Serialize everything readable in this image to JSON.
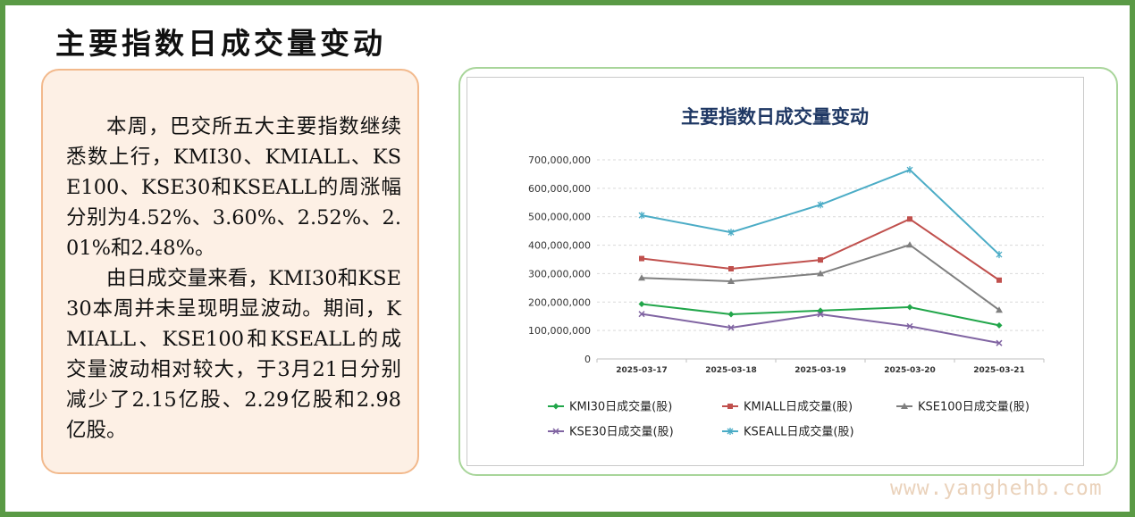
{
  "page": {
    "title": "主要指数日成交量变动",
    "paragraphs": [
      "本周，巴交所五大主要指数继续悉数上行，KMI30、KMIALL、KSE100、KSE30和KSEALL的周涨幅分别为4.52%、3.60%、2.52%、2.01%和2.48%。",
      "由日成交量来看，KMI30和KSE30本周并未呈现明显波动。期间，KMIALL、KSE100和KSEALL的成交量波动相对较大，于3月21日分别减少了2.15亿股、2.29亿股和2.98亿股。"
    ],
    "watermark": "www.yanghehb.com"
  },
  "colors": {
    "frame": "#5a9a45",
    "chart_title": "#1f3864"
  },
  "chart_data": {
    "type": "line",
    "title": "主要指数日成交量变动",
    "categories": [
      "2025-03-17",
      "2025-03-18",
      "2025-03-19",
      "2025-03-20",
      "2025-03-21"
    ],
    "y_tick_labels": [
      "0",
      "100,000,000",
      "200,000,000",
      "300,000,000",
      "400,000,000",
      "500,000,000",
      "600,000,000",
      "700,000,000"
    ],
    "ylim": [
      0,
      700000000
    ],
    "grid": true,
    "legend_position": "bottom",
    "series": [
      {
        "name": "KMI30日成交量(股)",
        "color": "#21a64a",
        "marker": "diamond",
        "values": [
          193000000,
          157000000,
          170000000,
          182000000,
          118000000
        ]
      },
      {
        "name": "KMIALL日成交量(股)",
        "color": "#c0504d",
        "marker": "square",
        "values": [
          353000000,
          317000000,
          348000000,
          492000000,
          277000000
        ]
      },
      {
        "name": "KSE100日成交量(股)",
        "color": "#7f7f7f",
        "marker": "triangle",
        "values": [
          285000000,
          273000000,
          300000000,
          401000000,
          172000000
        ]
      },
      {
        "name": "KSE30日成交量(股)",
        "color": "#8064a2",
        "marker": "x",
        "values": [
          158000000,
          110000000,
          157000000,
          115000000,
          56000000
        ]
      },
      {
        "name": "KSEALL日成交量(股)",
        "color": "#4bacc6",
        "marker": "star",
        "values": [
          505000000,
          445000000,
          542000000,
          665000000,
          367000000
        ]
      }
    ]
  }
}
